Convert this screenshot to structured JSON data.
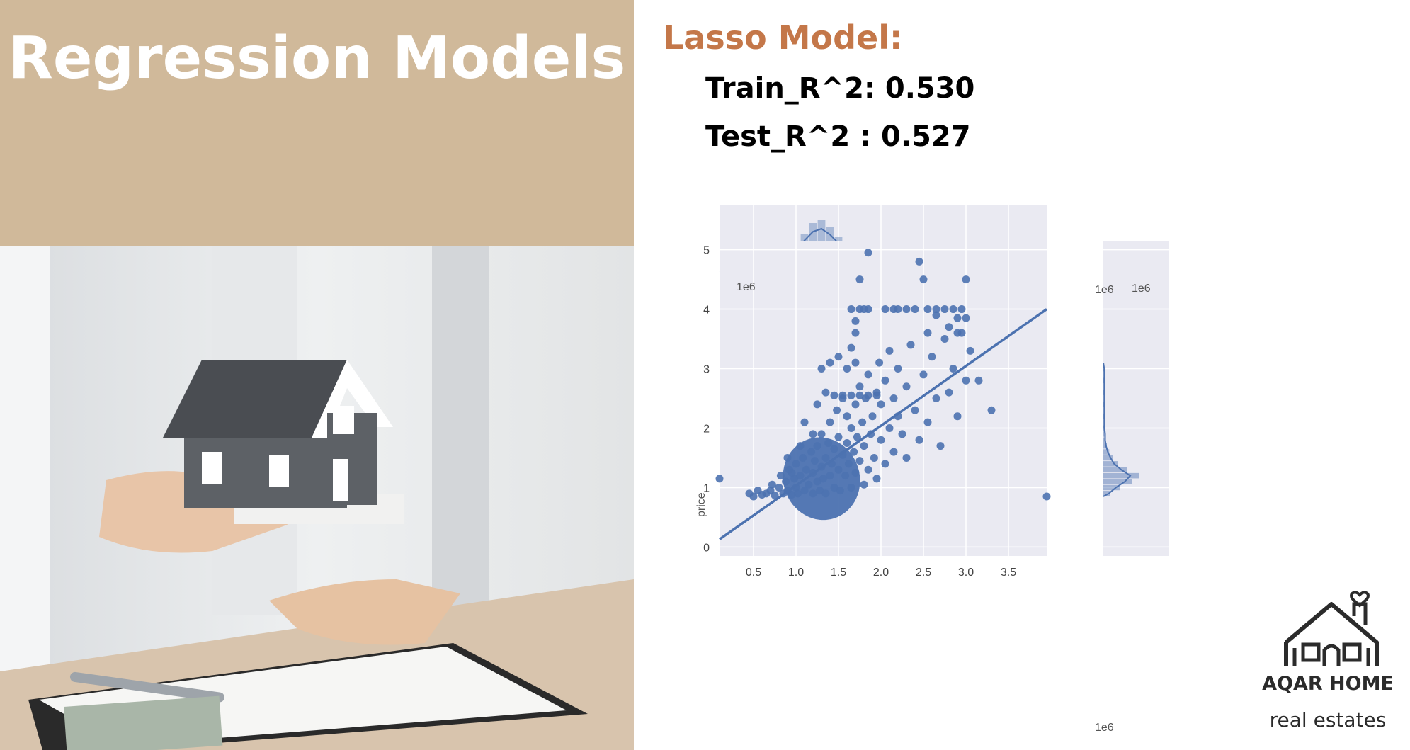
{
  "colors": {
    "panel": "#d0b99a",
    "accent": "#c47749",
    "plot_bg": "#eaeaf2",
    "series": "#4c72b0"
  },
  "slide": {
    "title": "Regression Models",
    "model_name": "Lasso Model:",
    "train_r2": "Train_R^2: 0.530",
    "test_r2": "Test_R^2 : 0.527",
    "brand": "AQAR HOME",
    "tagline": "real estates",
    "photo_icon": "house-model-handover-photo",
    "logo_icon": "house-with-heart-icon"
  },
  "chart_data": {
    "type": "scatter",
    "subtype": "jointplot-with-regression-line-and-marginal-histograms",
    "xlabel": "",
    "ylabel": "price",
    "x_offset_label": "1e6",
    "y_offset_label": "1e6",
    "xlim": [
      0.1,
      3.95
    ],
    "ylim": [
      -0.15,
      5.15
    ],
    "xticks": [
      0.5,
      1.0,
      1.5,
      2.0,
      2.5,
      3.0,
      3.5
    ],
    "xtick_labels": [
      "0.5",
      "1.0",
      "1.5",
      "2.0",
      "2.5",
      "3.0",
      "3.5"
    ],
    "yticks": [
      0,
      1,
      2,
      3,
      4,
      5
    ],
    "ytick_labels": [
      "0",
      "1",
      "2",
      "3",
      "4",
      "5"
    ],
    "grid": true,
    "regression_line": {
      "x": [
        0.1,
        3.95
      ],
      "y": [
        0.13,
        4.0
      ]
    },
    "points": [
      [
        0.1,
        1.15
      ],
      [
        3.95,
        0.85
      ],
      [
        0.45,
        0.9
      ],
      [
        0.5,
        0.85
      ],
      [
        0.55,
        0.95
      ],
      [
        0.6,
        0.88
      ],
      [
        0.65,
        0.9
      ],
      [
        0.7,
        0.95
      ],
      [
        0.72,
        1.05
      ],
      [
        0.75,
        0.87
      ],
      [
        0.8,
        1.0
      ],
      [
        0.82,
        1.2
      ],
      [
        0.85,
        0.9
      ],
      [
        0.88,
        1.1
      ],
      [
        0.9,
        0.95
      ],
      [
        0.92,
        1.3
      ],
      [
        0.95,
        0.88
      ],
      [
        0.98,
        1.15
      ],
      [
        1.0,
        1.0
      ],
      [
        1.0,
        1.4
      ],
      [
        1.02,
        0.9
      ],
      [
        1.05,
        1.2
      ],
      [
        1.08,
        1.5
      ],
      [
        1.1,
        0.95
      ],
      [
        1.12,
        1.3
      ],
      [
        1.15,
        1.05
      ],
      [
        1.18,
        1.6
      ],
      [
        1.2,
        0.9
      ],
      [
        1.2,
        1.25
      ],
      [
        1.22,
        1.45
      ],
      [
        1.25,
        1.1
      ],
      [
        1.25,
        1.7
      ],
      [
        1.28,
        0.95
      ],
      [
        1.3,
        1.35
      ],
      [
        1.3,
        1.9
      ],
      [
        1.32,
        1.15
      ],
      [
        1.35,
        1.5
      ],
      [
        1.35,
        0.9
      ],
      [
        1.38,
        1.75
      ],
      [
        1.4,
        1.2
      ],
      [
        1.4,
        2.1
      ],
      [
        1.42,
        1.4
      ],
      [
        1.45,
        1.0
      ],
      [
        1.45,
        1.65
      ],
      [
        1.48,
        2.3
      ],
      [
        1.5,
        1.3
      ],
      [
        1.5,
        1.85
      ],
      [
        1.52,
        0.95
      ],
      [
        1.55,
        1.55
      ],
      [
        1.55,
        2.5
      ],
      [
        1.58,
        1.2
      ],
      [
        1.6,
        1.75
      ],
      [
        1.6,
        2.2
      ],
      [
        1.62,
        1.4
      ],
      [
        1.65,
        1.0
      ],
      [
        1.65,
        2.0
      ],
      [
        1.68,
        1.6
      ],
      [
        1.7,
        2.4
      ],
      [
        1.7,
        1.25
      ],
      [
        1.72,
        1.85
      ],
      [
        1.75,
        2.7
      ],
      [
        1.75,
        1.45
      ],
      [
        1.78,
        2.1
      ],
      [
        1.8,
        1.05
      ],
      [
        1.8,
        1.7
      ],
      [
        1.82,
        2.5
      ],
      [
        1.85,
        1.3
      ],
      [
        1.85,
        2.9
      ],
      [
        1.88,
        1.9
      ],
      [
        1.9,
        2.2
      ],
      [
        1.92,
        1.5
      ],
      [
        1.95,
        2.6
      ],
      [
        1.95,
        1.15
      ],
      [
        1.98,
        3.1
      ],
      [
        2.0,
        1.8
      ],
      [
        2.0,
        2.4
      ],
      [
        2.05,
        1.4
      ],
      [
        2.05,
        2.8
      ],
      [
        2.1,
        2.0
      ],
      [
        2.1,
        3.3
      ],
      [
        2.15,
        1.6
      ],
      [
        2.15,
        2.5
      ],
      [
        2.2,
        2.2
      ],
      [
        2.2,
        3.0
      ],
      [
        2.25,
        1.9
      ],
      [
        2.3,
        2.7
      ],
      [
        2.3,
        1.5
      ],
      [
        2.35,
        3.4
      ],
      [
        2.4,
        2.3
      ],
      [
        2.45,
        1.8
      ],
      [
        2.5,
        2.9
      ],
      [
        2.55,
        2.1
      ],
      [
        2.6,
        3.2
      ],
      [
        2.65,
        2.5
      ],
      [
        2.7,
        1.7
      ],
      [
        2.75,
        3.5
      ],
      [
        2.8,
        2.6
      ],
      [
        2.85,
        3.0
      ],
      [
        2.9,
        2.2
      ],
      [
        2.95,
        3.6
      ],
      [
        3.0,
        2.8
      ],
      [
        3.05,
        3.3
      ],
      [
        3.15,
        2.8
      ],
      [
        3.3,
        2.3
      ],
      [
        1.45,
        2.55
      ],
      [
        1.55,
        2.55
      ],
      [
        1.65,
        2.55
      ],
      [
        1.75,
        2.55
      ],
      [
        1.85,
        2.55
      ],
      [
        1.95,
        2.55
      ],
      [
        1.25,
        2.4
      ],
      [
        1.35,
        2.6
      ],
      [
        1.1,
        2.1
      ],
      [
        0.9,
        1.5
      ],
      [
        1.7,
        3.1
      ],
      [
        1.6,
        3.0
      ],
      [
        1.5,
        3.2
      ],
      [
        1.65,
        3.35
      ],
      [
        1.4,
        3.1
      ],
      [
        1.3,
        3.0
      ],
      [
        1.65,
        4.0
      ],
      [
        1.75,
        4.0
      ],
      [
        1.8,
        4.0
      ],
      [
        1.85,
        4.0
      ],
      [
        2.05,
        4.0
      ],
      [
        2.15,
        4.0
      ],
      [
        2.2,
        4.0
      ],
      [
        2.3,
        4.0
      ],
      [
        2.4,
        4.0
      ],
      [
        2.55,
        4.0
      ],
      [
        2.65,
        4.0
      ],
      [
        2.75,
        4.0
      ],
      [
        2.85,
        4.0
      ],
      [
        2.95,
        4.0
      ],
      [
        3.0,
        3.85
      ],
      [
        2.9,
        3.85
      ],
      [
        1.7,
        3.6
      ],
      [
        1.7,
        3.8
      ],
      [
        2.55,
        3.6
      ],
      [
        2.65,
        3.9
      ],
      [
        2.8,
        3.7
      ],
      [
        2.9,
        3.6
      ],
      [
        1.75,
        4.5
      ],
      [
        2.5,
        4.5
      ],
      [
        3.0,
        4.5
      ],
      [
        1.85,
        4.95
      ],
      [
        2.45,
        4.8
      ],
      [
        1.2,
        1.9
      ],
      [
        1.05,
        1.7
      ],
      [
        0.95,
        1.25
      ]
    ],
    "marginal_top": {
      "bin_centers": [
        0.8,
        0.9,
        1.0,
        1.1,
        1.2,
        1.3,
        1.4,
        1.5,
        1.6,
        1.7,
        1.8,
        1.9,
        2.0,
        2.1,
        2.2,
        2.4,
        2.45,
        2.5
      ],
      "counts": [
        2,
        6,
        14,
        22,
        28,
        30,
        26,
        20,
        14,
        9,
        6,
        4,
        3,
        2,
        1,
        1,
        3,
        1
      ]
    },
    "marginal_right": {
      "bin_centers": [
        0.9,
        1.0,
        1.1,
        1.2,
        1.3,
        1.4,
        1.5,
        1.6,
        1.7,
        1.8,
        1.9,
        2.0,
        2.2,
        2.4,
        2.6,
        2.8,
        3.0
      ],
      "counts": [
        6,
        14,
        24,
        30,
        20,
        12,
        8,
        5,
        3,
        2,
        2,
        1,
        1,
        1,
        1,
        1,
        1
      ]
    }
  }
}
